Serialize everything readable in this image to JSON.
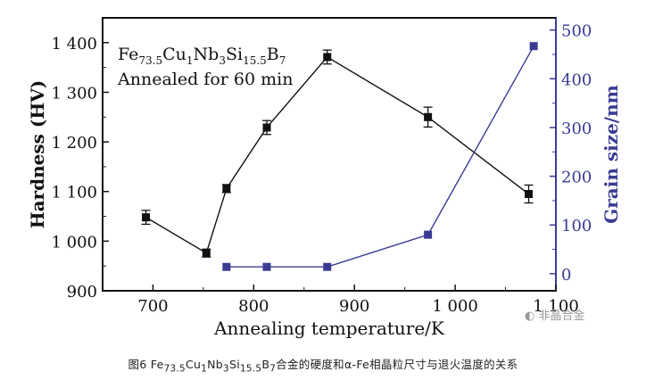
{
  "chart_data": {
    "type": "line",
    "title_line1": {
      "base": "Fe",
      "s1": "73.5",
      "cu": "Cu",
      "s2": "1",
      "nb": "Nb",
      "s3": "3",
      "si": "Si",
      "s4": "15.5",
      "b": "B",
      "s5": "7"
    },
    "title_line2": "Annealed for 60 min",
    "xlabel": "Annealing temperature/K",
    "ylabel_left": "Hardness (HV)",
    "ylabel_right": "Grain size/nm",
    "xlim": [
      650,
      1100
    ],
    "ylim_left": [
      900,
      1450
    ],
    "ylim_right": [
      -35,
      525
    ],
    "x_ticks": [
      {
        "value": 700,
        "label": "700"
      },
      {
        "value": 800,
        "label": "800"
      },
      {
        "value": 900,
        "label": "900"
      },
      {
        "value": 1000,
        "label": "1 000"
      },
      {
        "value": 1100,
        "label": "1 100"
      }
    ],
    "y_ticks_left": [
      {
        "value": 900,
        "label": "900"
      },
      {
        "value": 1000,
        "label": "1 000"
      },
      {
        "value": 1100,
        "label": "1 100"
      },
      {
        "value": 1200,
        "label": "1 200"
      },
      {
        "value": 1300,
        "label": "1 300"
      },
      {
        "value": 1400,
        "label": "1 400"
      }
    ],
    "y_ticks_right": [
      {
        "value": 0,
        "label": "0"
      },
      {
        "value": 100,
        "label": "100"
      },
      {
        "value": 200,
        "label": "200"
      },
      {
        "value": 300,
        "label": "300"
      },
      {
        "value": 400,
        "label": "400"
      },
      {
        "value": 500,
        "label": "500"
      }
    ],
    "series": [
      {
        "axis": "left",
        "x": [
          693,
          753,
          773,
          813,
          873,
          973,
          1073
        ],
        "y": [
          1048,
          976,
          1106,
          1229,
          1371,
          1250,
          1095
        ],
        "err": [
          14,
          8,
          8,
          14,
          14,
          20,
          18
        ],
        "color": "#111111"
      },
      {
        "axis": "right",
        "x": [
          773,
          813,
          873,
          973,
          1078
        ],
        "y": [
          14,
          14,
          14,
          80,
          467
        ],
        "color": "#3b3b94"
      }
    ],
    "axis_colors": {
      "left": "#111111",
      "right": "#3b3b94"
    }
  },
  "watermark": "非晶合金",
  "caption": {
    "prefix": "图6   Fe",
    "s1": "73.5",
    "cu": "Cu",
    "s2": "1",
    "nb": "Nb",
    "s3": "3",
    "si": "Si",
    "s4": "15.5",
    "b": "B",
    "s5": "7",
    "suffix": "合金的硬度和α-Fe相晶粒尺寸与退火温度的关系"
  }
}
